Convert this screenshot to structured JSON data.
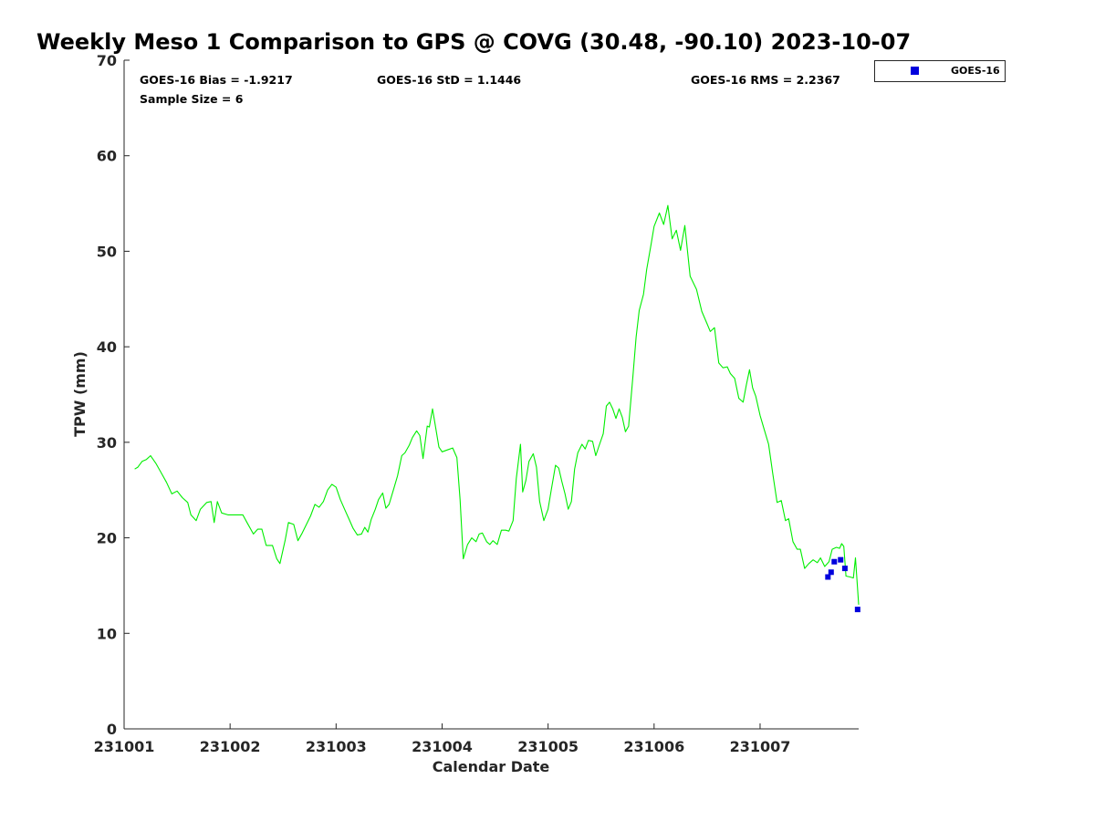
{
  "chart_data": {
    "type": "scatter",
    "title": "Weekly Meso 1 Comparison to GPS @ COVG (30.48, -90.10) 2023-10-07",
    "xlabel": "Calendar Date",
    "ylabel": "TPW (mm)",
    "xlim": [
      231001,
      231007.93
    ],
    "ylim": [
      0,
      70
    ],
    "x_ticks": [
      231001,
      231002,
      231003,
      231004,
      231005,
      231006,
      231007
    ],
    "x_tick_labels": [
      "231001",
      "231002",
      "231003",
      "231004",
      "231005",
      "231006",
      "231007"
    ],
    "y_ticks": [
      0,
      10,
      20,
      30,
      40,
      50,
      60,
      70
    ],
    "y_tick_labels": [
      "0",
      "10",
      "20",
      "30",
      "40",
      "50",
      "60",
      "70"
    ],
    "grid": false,
    "legend": {
      "position": "outside-top-right",
      "entries": [
        "GOES-16"
      ]
    },
    "stats": {
      "bias": "GOES-16 Bias = -1.9217",
      "std": "GOES-16 StD = 1.1446",
      "rms": "GOES-16 RMS = 2.2367",
      "sample_size": "Sample Size = 6"
    },
    "colors": {
      "gps_line": "#00ee00",
      "goes_marker": "#0000dd",
      "axis": "#262626"
    },
    "series": [
      {
        "type": "line",
        "points": [
          [
            231001.1,
            27.2
          ],
          [
            231001.13,
            27.4
          ],
          [
            231001.17,
            28.0
          ],
          [
            231001.21,
            28.2
          ],
          [
            231001.25,
            28.6
          ],
          [
            231001.3,
            27.8
          ],
          [
            231001.35,
            26.8
          ],
          [
            231001.4,
            25.8
          ],
          [
            231001.45,
            24.6
          ],
          [
            231001.5,
            24.9
          ],
          [
            231001.55,
            24.2
          ],
          [
            231001.6,
            23.7
          ],
          [
            231001.63,
            22.4
          ],
          [
            231001.68,
            21.8
          ],
          [
            231001.72,
            23.0
          ],
          [
            231001.78,
            23.7
          ],
          [
            231001.82,
            23.8
          ],
          [
            231001.85,
            21.6
          ],
          [
            231001.88,
            23.8
          ],
          [
            231001.92,
            22.6
          ],
          [
            231001.98,
            22.4
          ],
          [
            231002.05,
            22.4
          ],
          [
            231002.12,
            22.4
          ],
          [
            231002.16,
            21.6
          ],
          [
            231002.22,
            20.4
          ],
          [
            231002.26,
            20.9
          ],
          [
            231002.3,
            20.9
          ],
          [
            231002.34,
            19.2
          ],
          [
            231002.4,
            19.2
          ],
          [
            231002.44,
            17.8
          ],
          [
            231002.47,
            17.3
          ],
          [
            231002.52,
            19.8
          ],
          [
            231002.55,
            21.6
          ],
          [
            231002.6,
            21.4
          ],
          [
            231002.64,
            19.7
          ],
          [
            231002.68,
            20.5
          ],
          [
            231002.72,
            21.4
          ],
          [
            231002.76,
            22.3
          ],
          [
            231002.8,
            23.5
          ],
          [
            231002.84,
            23.2
          ],
          [
            231002.88,
            23.8
          ],
          [
            231002.92,
            25.0
          ],
          [
            231002.96,
            25.6
          ],
          [
            231003.0,
            25.3
          ],
          [
            231003.04,
            24.0
          ],
          [
            231003.08,
            23.0
          ],
          [
            231003.12,
            22.0
          ],
          [
            231003.16,
            21.0
          ],
          [
            231003.2,
            20.3
          ],
          [
            231003.24,
            20.4
          ],
          [
            231003.27,
            21.1
          ],
          [
            231003.3,
            20.6
          ],
          [
            231003.33,
            21.9
          ],
          [
            231003.37,
            23.0
          ],
          [
            231003.4,
            24.0
          ],
          [
            231003.44,
            24.7
          ],
          [
            231003.47,
            23.1
          ],
          [
            231003.5,
            23.5
          ],
          [
            231003.54,
            25.0
          ],
          [
            231003.58,
            26.5
          ],
          [
            231003.62,
            28.6
          ],
          [
            231003.65,
            28.9
          ],
          [
            231003.69,
            29.7
          ],
          [
            231003.72,
            30.5
          ],
          [
            231003.76,
            31.2
          ],
          [
            231003.79,
            30.7
          ],
          [
            231003.82,
            28.3
          ],
          [
            231003.84,
            30.0
          ],
          [
            231003.86,
            31.7
          ],
          [
            231003.88,
            31.6
          ],
          [
            231003.91,
            33.5
          ],
          [
            231003.94,
            31.5
          ],
          [
            231003.97,
            29.5
          ],
          [
            231004.0,
            29.0
          ],
          [
            231004.05,
            29.2
          ],
          [
            231004.1,
            29.4
          ],
          [
            231004.14,
            28.4
          ],
          [
            231004.17,
            24.0
          ],
          [
            231004.2,
            17.8
          ],
          [
            231004.24,
            19.3
          ],
          [
            231004.28,
            20.0
          ],
          [
            231004.32,
            19.6
          ],
          [
            231004.35,
            20.4
          ],
          [
            231004.38,
            20.5
          ],
          [
            231004.42,
            19.6
          ],
          [
            231004.45,
            19.3
          ],
          [
            231004.48,
            19.7
          ],
          [
            231004.52,
            19.3
          ],
          [
            231004.56,
            20.8
          ],
          [
            231004.6,
            20.8
          ],
          [
            231004.63,
            20.7
          ],
          [
            231004.67,
            21.8
          ],
          [
            231004.7,
            26.2
          ],
          [
            231004.74,
            29.8
          ],
          [
            231004.76,
            24.8
          ],
          [
            231004.79,
            26.0
          ],
          [
            231004.82,
            28.0
          ],
          [
            231004.86,
            28.8
          ],
          [
            231004.89,
            27.4
          ],
          [
            231004.92,
            23.8
          ],
          [
            231004.96,
            21.8
          ],
          [
            231005.0,
            23.0
          ],
          [
            231005.03,
            25.0
          ],
          [
            231005.07,
            27.6
          ],
          [
            231005.1,
            27.3
          ],
          [
            231005.13,
            25.9
          ],
          [
            231005.16,
            24.6
          ],
          [
            231005.19,
            23.0
          ],
          [
            231005.22,
            23.8
          ],
          [
            231005.25,
            27.2
          ],
          [
            231005.28,
            28.9
          ],
          [
            231005.32,
            29.8
          ],
          [
            231005.35,
            29.3
          ],
          [
            231005.38,
            30.2
          ],
          [
            231005.42,
            30.1
          ],
          [
            231005.45,
            28.6
          ],
          [
            231005.48,
            29.6
          ],
          [
            231005.52,
            30.9
          ],
          [
            231005.55,
            33.8
          ],
          [
            231005.58,
            34.2
          ],
          [
            231005.61,
            33.5
          ],
          [
            231005.64,
            32.5
          ],
          [
            231005.67,
            33.5
          ],
          [
            231005.7,
            32.6
          ],
          [
            231005.73,
            31.1
          ],
          [
            231005.76,
            31.7
          ],
          [
            231005.8,
            36.9
          ],
          [
            231005.83,
            41.0
          ],
          [
            231005.86,
            43.8
          ],
          [
            231005.9,
            45.5
          ],
          [
            231005.93,
            48.1
          ],
          [
            231005.97,
            50.6
          ],
          [
            231006.0,
            52.6
          ],
          [
            231006.05,
            54.0
          ],
          [
            231006.09,
            52.8
          ],
          [
            231006.13,
            54.8
          ],
          [
            231006.17,
            51.3
          ],
          [
            231006.21,
            52.2
          ],
          [
            231006.25,
            50.1
          ],
          [
            231006.29,
            52.7
          ],
          [
            231006.34,
            47.4
          ],
          [
            231006.4,
            46.0
          ],
          [
            231006.45,
            43.7
          ],
          [
            231006.5,
            42.4
          ],
          [
            231006.53,
            41.6
          ],
          [
            231006.57,
            42.0
          ],
          [
            231006.61,
            38.3
          ],
          [
            231006.65,
            37.8
          ],
          [
            231006.69,
            37.9
          ],
          [
            231006.72,
            37.2
          ],
          [
            231006.76,
            36.7
          ],
          [
            231006.8,
            34.6
          ],
          [
            231006.84,
            34.2
          ],
          [
            231006.87,
            36.0
          ],
          [
            231006.9,
            37.6
          ],
          [
            231006.93,
            35.7
          ],
          [
            231006.96,
            34.8
          ],
          [
            231007.0,
            32.8
          ],
          [
            231007.04,
            31.3
          ],
          [
            231007.08,
            29.8
          ],
          [
            231007.12,
            26.7
          ],
          [
            231007.16,
            23.7
          ],
          [
            231007.2,
            23.9
          ],
          [
            231007.24,
            21.8
          ],
          [
            231007.27,
            22.0
          ],
          [
            231007.31,
            19.6
          ],
          [
            231007.35,
            18.8
          ],
          [
            231007.38,
            18.8
          ],
          [
            231007.42,
            16.8
          ],
          [
            231007.46,
            17.3
          ],
          [
            231007.5,
            17.7
          ],
          [
            231007.54,
            17.4
          ],
          [
            231007.57,
            17.9
          ],
          [
            231007.61,
            17.0
          ],
          [
            231007.65,
            17.5
          ],
          [
            231007.68,
            18.8
          ],
          [
            231007.72,
            19.0
          ],
          [
            231007.75,
            18.9
          ],
          [
            231007.77,
            19.4
          ],
          [
            231007.79,
            19.1
          ],
          [
            231007.81,
            16.0
          ],
          [
            231007.85,
            15.9
          ],
          [
            231007.88,
            15.8
          ],
          [
            231007.9,
            17.9
          ],
          [
            231007.93,
            13.0
          ]
        ]
      },
      {
        "name": "GOES-16",
        "type": "scatter",
        "points": [
          [
            231007.64,
            15.9
          ],
          [
            231007.67,
            16.4
          ],
          [
            231007.7,
            17.5
          ],
          [
            231007.76,
            17.7
          ],
          [
            231007.8,
            16.8
          ],
          [
            231007.92,
            12.5
          ]
        ]
      }
    ]
  }
}
